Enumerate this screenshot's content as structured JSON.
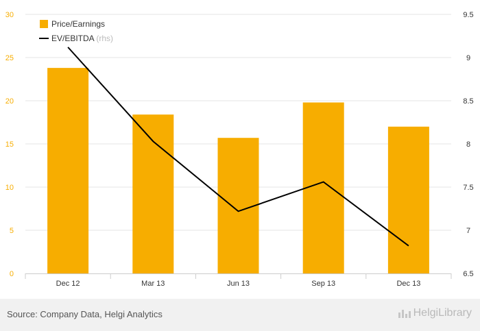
{
  "chart_data": {
    "type": "bar",
    "categories": [
      "Dec 12",
      "Mar 13",
      "Jun 13",
      "Sep 13",
      "Dec 13"
    ],
    "series": [
      {
        "name": "Price/Earnings",
        "type": "bar",
        "axis": "left",
        "values": [
          23.8,
          18.4,
          15.7,
          19.8,
          17.0
        ]
      },
      {
        "name": "EV/EBITDA",
        "type": "line",
        "axis": "right",
        "values": [
          9.12,
          8.03,
          7.22,
          7.56,
          6.82
        ]
      }
    ],
    "legend_suffix": "(rhs)",
    "y_left": {
      "min": 0,
      "max": 30,
      "ticks": [
        "0",
        "5",
        "10",
        "15",
        "20",
        "25",
        "30"
      ]
    },
    "y_right": {
      "min": 6.5,
      "max": 9.5,
      "ticks": [
        "6.5",
        "7",
        "7.5",
        "8",
        "8.5",
        "9",
        "9.5"
      ]
    },
    "grid": true,
    "legend_position": "top-left",
    "colors": {
      "bar": "#f7ad00",
      "line": "#000000",
      "grid": "#e6e6e6",
      "left_tick": "#f7ad00",
      "right_tick": "#333333"
    }
  },
  "footer": {
    "source": "Source: Company Data, Helgi Analytics",
    "logo": "HelgiLibrary"
  }
}
